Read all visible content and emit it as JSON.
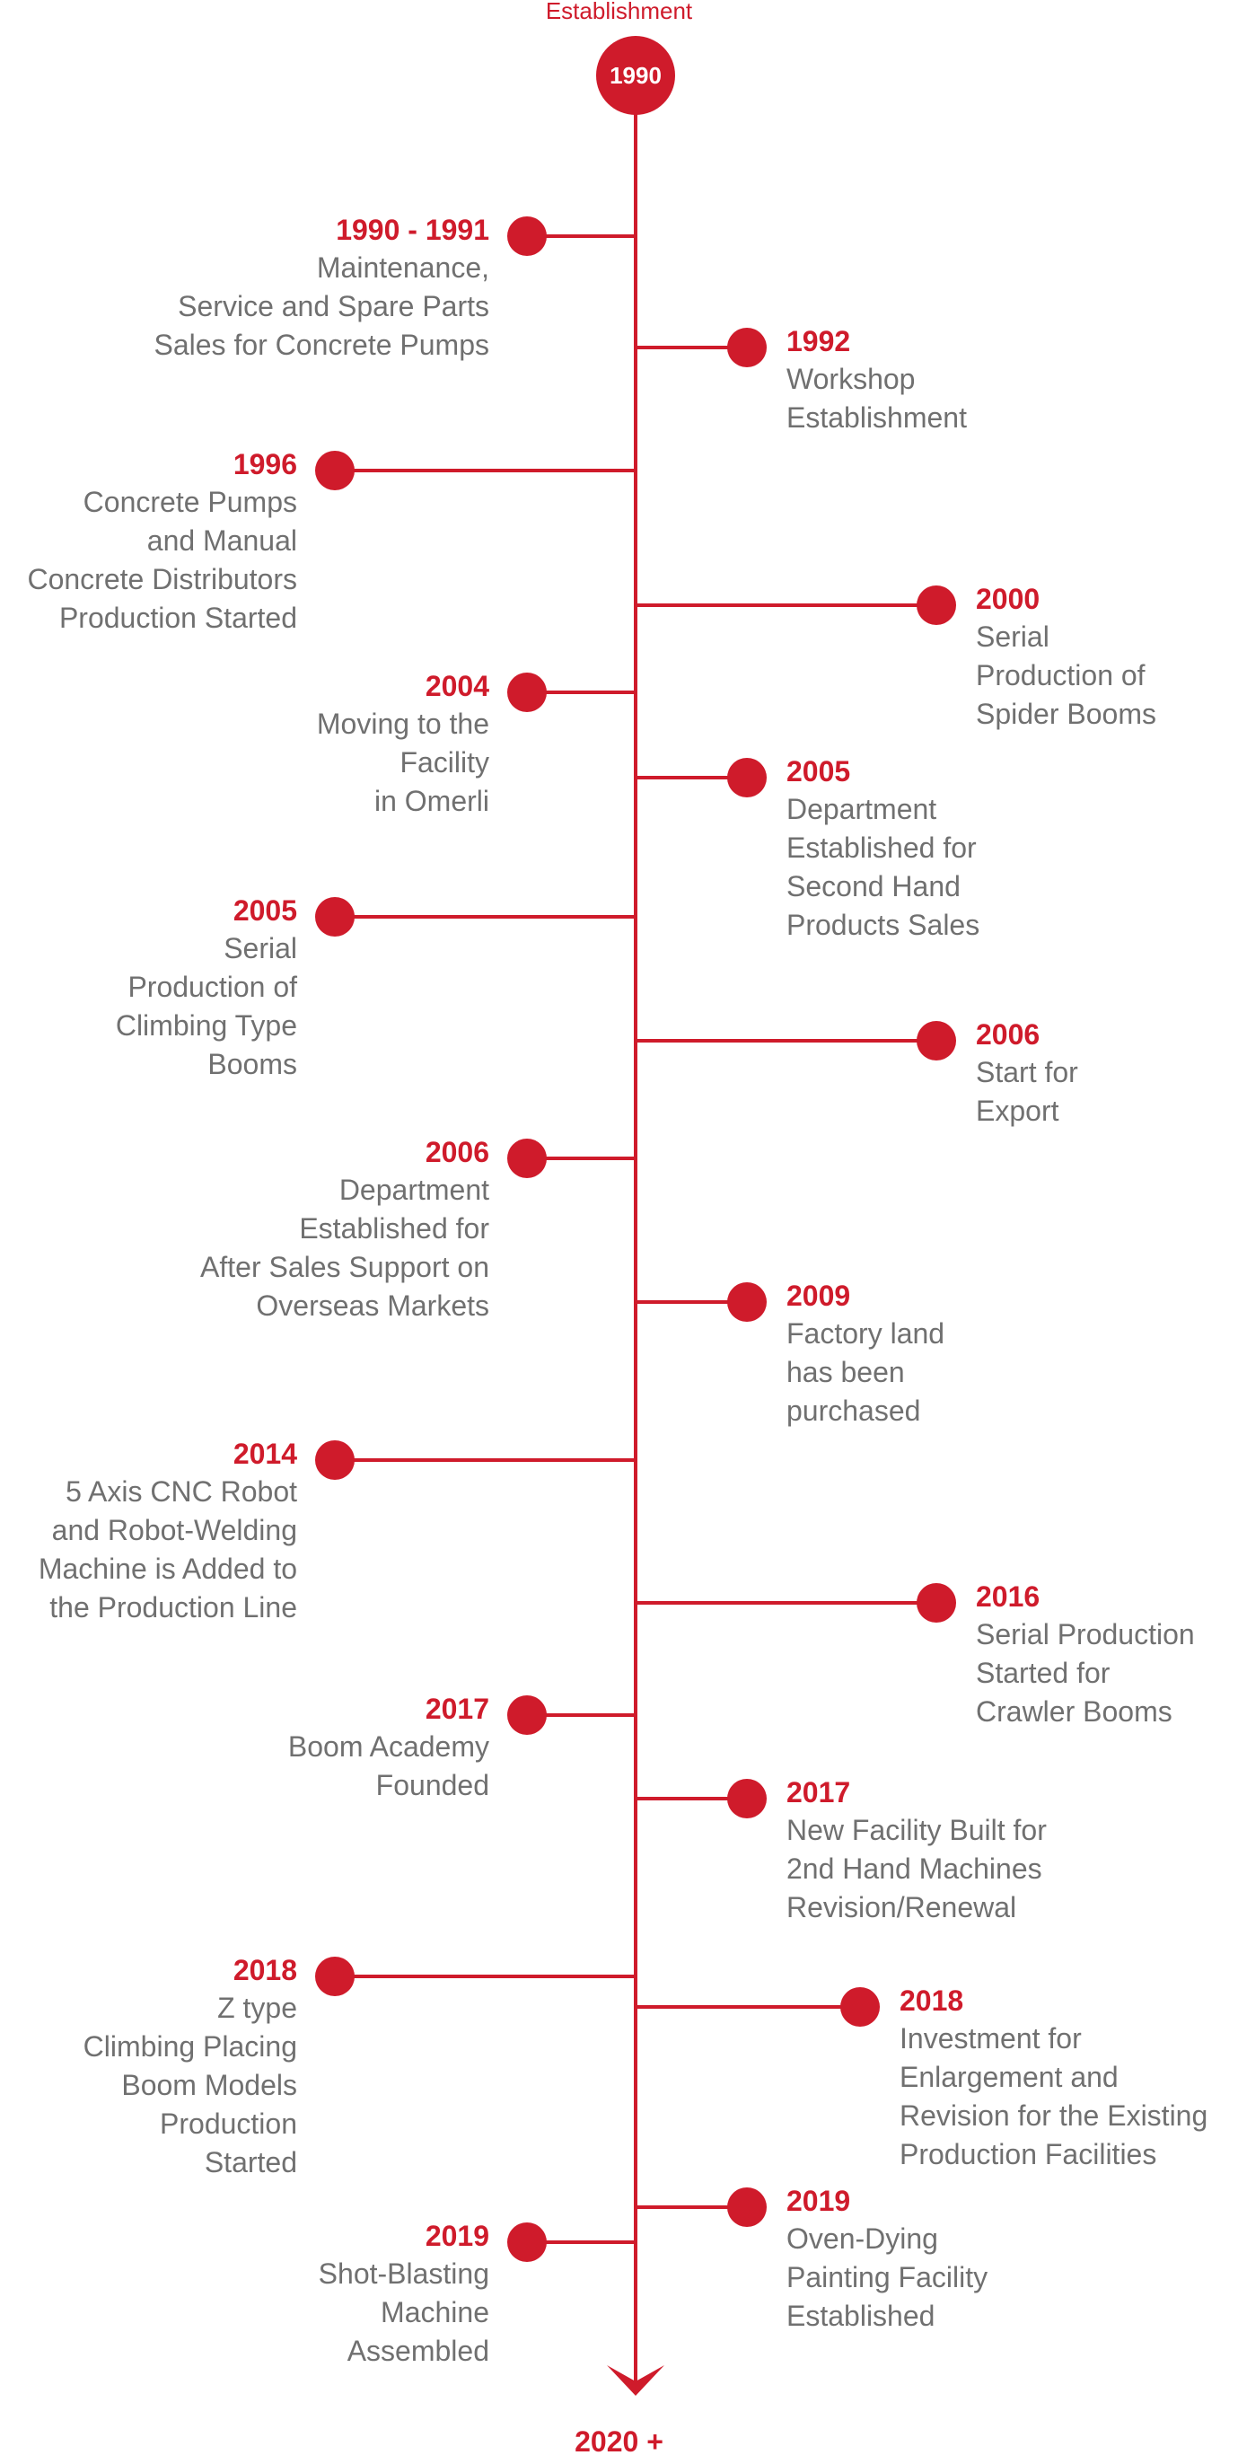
{
  "top_label": "Establishment",
  "start_year": "1990",
  "end_label": "2020 +",
  "accent_color": "#cf1b2b",
  "text_color": "#707070",
  "events": [
    {
      "side": "left",
      "arm": "short",
      "year": "1990 - 1991",
      "desc": "Maintenance,\nService and Spare Parts\nSales for Concrete Pumps"
    },
    {
      "side": "right",
      "arm": "short",
      "year": "1992",
      "desc": "Workshop\nEstablishment"
    },
    {
      "side": "left",
      "arm": "long",
      "year": "1996",
      "desc": "Concrete Pumps\nand Manual\nConcrete Distributors\nProduction Started"
    },
    {
      "side": "right",
      "arm": "long",
      "year": "2000",
      "desc": "Serial\nProduction of\nSpider Booms"
    },
    {
      "side": "left",
      "arm": "short",
      "year": "2004",
      "desc": "Moving to the\nFacility\nin Omerli"
    },
    {
      "side": "right",
      "arm": "short",
      "year": "2005",
      "desc": "Department\nEstablished for\nSecond Hand\nProducts Sales"
    },
    {
      "side": "left",
      "arm": "long",
      "year": "2005",
      "desc": "Serial\nProduction of\nClimbing Type\nBooms"
    },
    {
      "side": "right",
      "arm": "long",
      "year": "2006",
      "desc": "Start for\nExport"
    },
    {
      "side": "left",
      "arm": "short",
      "year": "2006",
      "desc": "Department\nEstablished for\nAfter Sales Support on\nOverseas Markets"
    },
    {
      "side": "right",
      "arm": "short",
      "year": "2009",
      "desc": "Factory land\nhas been\npurchased"
    },
    {
      "side": "left",
      "arm": "long",
      "year": "2014",
      "desc": "5 Axis CNC Robot\nand Robot-Welding\nMachine is Added to\nthe Production Line"
    },
    {
      "side": "right",
      "arm": "long",
      "year": "2016",
      "desc": "Serial Production\nStarted for\nCrawler Booms"
    },
    {
      "side": "left",
      "arm": "short",
      "year": "2017",
      "desc": "Boom Academy\nFounded"
    },
    {
      "side": "right",
      "arm": "short",
      "year": "2017",
      "desc": "New Facility Built for\n2nd Hand Machines\nRevision/Renewal"
    },
    {
      "side": "left",
      "arm": "long",
      "year": "2018",
      "desc": "Z type\nClimbing Placing\nBoom Models\nProduction\nStarted"
    },
    {
      "side": "right",
      "arm": "medium",
      "year": "2018",
      "desc": "Investment for\nEnlargement and\nRevision for the Existing\nProduction Facilities"
    },
    {
      "side": "right",
      "arm": "short",
      "year": "2019",
      "desc": "Oven-Dying\nPainting Facility\nEstablished"
    },
    {
      "side": "left",
      "arm": "short",
      "year": "2019",
      "desc": "Shot-Blasting\nMachine\nAssembled"
    }
  ]
}
